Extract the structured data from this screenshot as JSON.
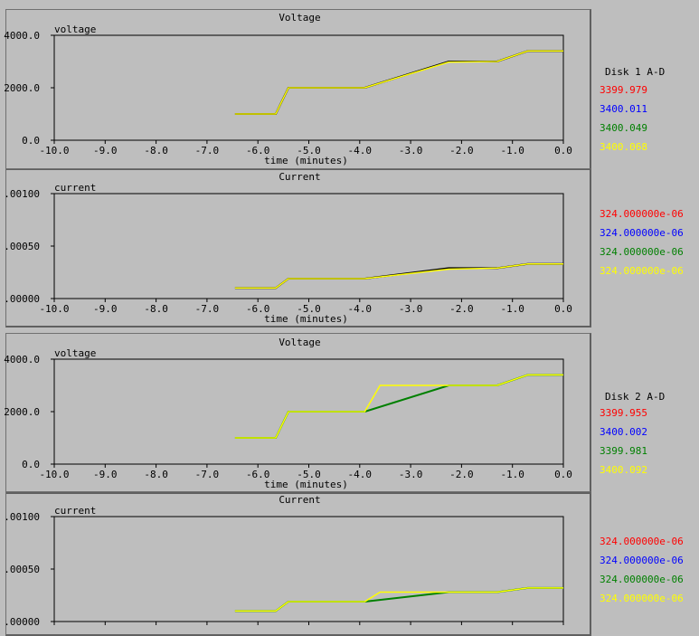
{
  "colors": {
    "red": "#ff0000",
    "blue": "#0000ff",
    "green": "#008000",
    "yellow": "#ffff00",
    "bg": "#bebebe"
  },
  "legend": {
    "disk1": {
      "title": "Disk 1 A-D",
      "voltages": [
        "3399.979",
        "3400.011",
        "3400.049",
        "3400.068"
      ],
      "currents": [
        "324.000000e-06",
        "324.000000e-06",
        "324.000000e-06",
        "324.000000e-06"
      ]
    },
    "disk2": {
      "title": "Disk 2 A-D",
      "voltages": [
        "3399.955",
        "3400.002",
        "3399.981",
        "3400.092"
      ],
      "currents": [
        "324.000000e-06",
        "324.000000e-06",
        "324.000000e-06",
        "324.000000e-06"
      ]
    }
  },
  "chart_data": [
    {
      "type": "line",
      "title": "Voltage",
      "ylabel": "voltage",
      "xlabel": "time (minutes)",
      "xlim": [
        -10,
        0
      ],
      "ylim": [
        0,
        4000
      ],
      "yticks": [
        "0.0",
        "2000.0",
        "4000.0"
      ],
      "xticks": [
        "-10.0",
        "-9.0",
        "-8.0",
        "-7.0",
        "-6.0",
        "-5.0",
        "-4.0",
        "-3.0",
        "-2.0",
        "-1.0",
        "0.0"
      ],
      "series": [
        {
          "color": "#000000",
          "x": [
            -6.45,
            -5.65,
            -5.55,
            -5.4,
            -3.9,
            -2.25,
            -1.3,
            -0.7,
            0
          ],
          "y": [
            1000,
            1000,
            1400,
            2000,
            2000,
            3000,
            3000,
            3400,
            3400
          ]
        },
        {
          "color": "#ffff00",
          "x": [
            -6.45,
            -5.65,
            -5.55,
            -5.4,
            -3.9,
            -2.25,
            -1.3,
            -0.7,
            0
          ],
          "y": [
            1000,
            1000,
            1400,
            2000,
            2000,
            2980,
            3000,
            3400,
            3400
          ]
        }
      ]
    },
    {
      "type": "line",
      "title": "Current",
      "ylabel": "current",
      "xlabel": "time (minutes)",
      "xlim": [
        -10,
        0
      ],
      "ylim": [
        0,
        0.001
      ],
      "yticks": [
        ".00000",
        ".00050",
        ".00100"
      ],
      "xticks": [
        "-10.0",
        "-9.0",
        "-8.0",
        "-7.0",
        "-6.0",
        "-5.0",
        "-4.0",
        "-3.0",
        "-2.0",
        "-1.0",
        "0.0"
      ],
      "series": [
        {
          "color": "#000000",
          "x": [
            -6.45,
            -5.65,
            -5.4,
            -3.9,
            -2.25,
            -1.3,
            -0.7,
            0
          ],
          "y": [
            0.0001,
            0.0001,
            0.00019,
            0.00019,
            0.00029,
            0.00029,
            0.00033,
            0.00033
          ]
        },
        {
          "color": "#ffff00",
          "x": [
            -6.45,
            -5.65,
            -5.4,
            -3.9,
            -2.25,
            -1.3,
            -0.7,
            0
          ],
          "y": [
            0.0001,
            0.0001,
            0.00019,
            0.00019,
            0.00028,
            0.00029,
            0.00033,
            0.00033
          ]
        }
      ]
    },
    {
      "type": "line",
      "title": "Voltage",
      "ylabel": "voltage",
      "xlabel": "time (minutes)",
      "xlim": [
        -10,
        0
      ],
      "ylim": [
        0,
        4000
      ],
      "yticks": [
        "0.0",
        "2000.0",
        "4000.0"
      ],
      "xticks": [
        "-10.0",
        "-9.0",
        "-8.0",
        "-7.0",
        "-6.0",
        "-5.0",
        "-4.0",
        "-3.0",
        "-2.0",
        "-1.0",
        "0.0"
      ],
      "series": [
        {
          "color": "#008000",
          "x": [
            -6.45,
            -5.65,
            -5.4,
            -3.9,
            -2.25,
            -1.3,
            -0.7,
            0
          ],
          "y": [
            1000,
            1000,
            2000,
            2000,
            3000,
            3000,
            3400,
            3400
          ]
        },
        {
          "color": "#ffff00",
          "x": [
            -6.45,
            -5.65,
            -5.4,
            -3.9,
            -3.6,
            -2.25,
            -1.3,
            -0.7,
            0
          ],
          "y": [
            1000,
            1000,
            2000,
            2000,
            3000,
            3000,
            3000,
            3400,
            3400
          ]
        }
      ]
    },
    {
      "type": "line",
      "title": "Current",
      "ylabel": "current",
      "xlabel": "",
      "xlim": [
        -10,
        0
      ],
      "ylim": [
        0,
        0.001
      ],
      "yticks": [
        ".00000",
        ".00050",
        ".00100"
      ],
      "xticks": [],
      "series": [
        {
          "color": "#008000",
          "x": [
            -6.45,
            -5.65,
            -5.4,
            -3.9,
            -2.25,
            -1.3,
            -0.7,
            0
          ],
          "y": [
            0.0001,
            0.0001,
            0.00019,
            0.00019,
            0.00028,
            0.00028,
            0.00032,
            0.00032
          ]
        },
        {
          "color": "#ffff00",
          "x": [
            -6.45,
            -5.65,
            -5.4,
            -3.9,
            -3.6,
            -2.25,
            -1.3,
            -0.7,
            0
          ],
          "y": [
            0.0001,
            0.0001,
            0.00019,
            0.00019,
            0.00028,
            0.00028,
            0.00028,
            0.00032,
            0.00032
          ]
        }
      ]
    }
  ]
}
